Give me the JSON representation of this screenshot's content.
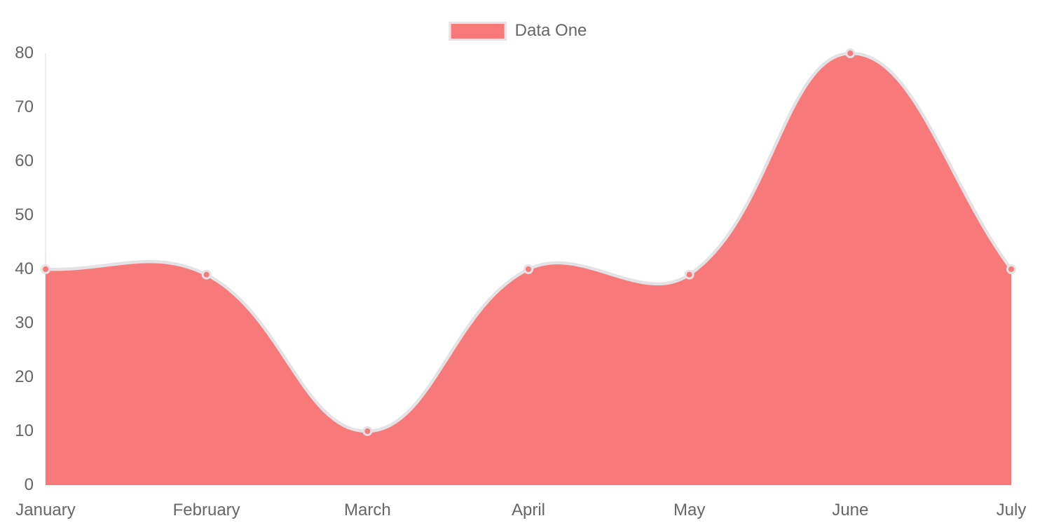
{
  "chart_data": {
    "type": "area",
    "title": "",
    "categories": [
      "January",
      "February",
      "March",
      "April",
      "May",
      "June",
      "July"
    ],
    "series": [
      {
        "name": "Data One",
        "values": [
          40,
          39,
          10,
          40,
          39,
          80,
          40
        ],
        "color": "#f87979"
      }
    ],
    "xlabel": "",
    "ylabel": "",
    "ylim": [
      0,
      80
    ],
    "yticks": [
      0,
      10,
      20,
      30,
      40,
      50,
      60,
      70,
      80
    ],
    "grid": false,
    "legend_position": "top-center",
    "curve_tension": 0.4,
    "line_color": "#e3e3e6",
    "axis_line_color": "#ededed",
    "tick_text_color": "#666666",
    "background_color": "#ffffff",
    "point_radius": 5.5
  }
}
